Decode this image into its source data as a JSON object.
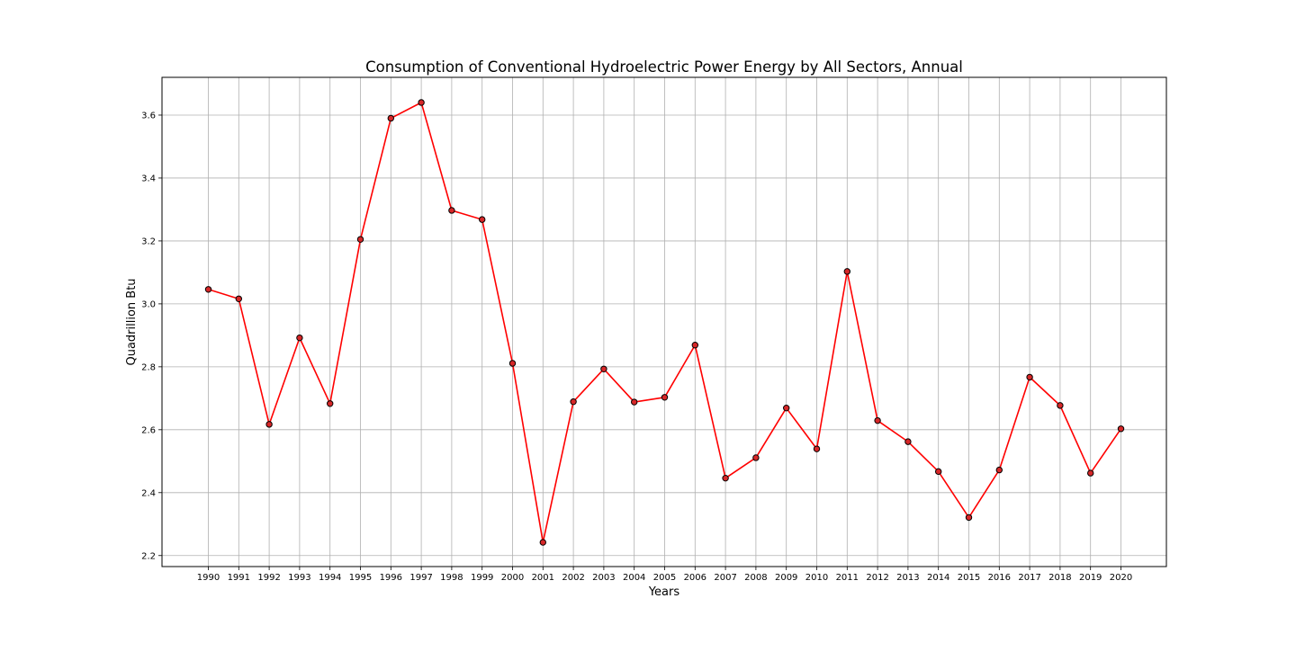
{
  "chart_data": {
    "type": "line",
    "title": "Consumption of Conventional Hydroelectric Power Energy by All Sectors, Annual",
    "xlabel": "Years",
    "ylabel": "Quadrillion Btu",
    "ylim": [
      2.165,
      3.72
    ],
    "y_ticks": [
      "2.2",
      "2.4",
      "2.6",
      "2.8",
      "3.0",
      "3.2",
      "3.4",
      "3.6"
    ],
    "grid": true,
    "legend": "none",
    "line_color": "#ff0000",
    "marker_color": "#d62728",
    "marker_edge_color": "#000000",
    "categories": [
      "1990",
      "1991",
      "1992",
      "1993",
      "1994",
      "1995",
      "1996",
      "1997",
      "1998",
      "1999",
      "2000",
      "2001",
      "2002",
      "2003",
      "2004",
      "2005",
      "2006",
      "2007",
      "2008",
      "2009",
      "2010",
      "2011",
      "2012",
      "2013",
      "2014",
      "2015",
      "2016",
      "2017",
      "2018",
      "2019",
      "2020"
    ],
    "series": [
      {
        "values": [
          3.046,
          3.016,
          2.617,
          2.892,
          2.683,
          3.205,
          3.59,
          3.64,
          3.297,
          3.268,
          2.811,
          2.242,
          2.689,
          2.793,
          2.688,
          2.703,
          2.869,
          2.446,
          2.511,
          2.669,
          2.539,
          3.103,
          2.629,
          2.562,
          2.467,
          2.321,
          2.472,
          2.767,
          2.677,
          2.462,
          2.603
        ]
      }
    ]
  }
}
